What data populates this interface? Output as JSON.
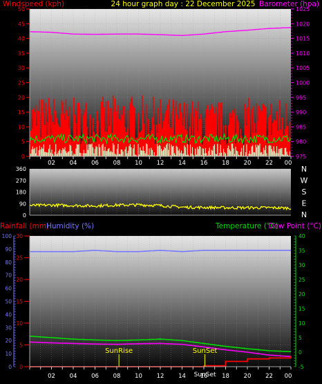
{
  "header": {
    "left": "Windspeed (kph)",
    "center": "24 hour graph day : 22 December 2025",
    "right": "Barometer (hpa)"
  },
  "lower_header": {
    "rainfall": "Rainfall (mm)",
    "humidity": "Humidity (%)",
    "temperature": "Temperature (°C)",
    "dewpoint": "Dew Point (°C)"
  },
  "colors": {
    "windspeed": "#ff0000",
    "wind_avg": "#00dd00",
    "wind_low": "#ccffcc",
    "barometer": "#ff00ff",
    "direction": "#ffff00",
    "rainfall": "#ff0000",
    "humidity": "#7777ff",
    "temperature": "#00dd00",
    "dewpoint": "#ff00ff",
    "text_white": "#ffffff"
  },
  "x_tick_labels": [
    "02",
    "04",
    "06",
    "08",
    "10",
    "12",
    "14",
    "16",
    "18",
    "20",
    "22",
    "00"
  ],
  "compass_labels": [
    "N",
    "W",
    "S",
    "E",
    "N"
  ],
  "chart_data": [
    {
      "type": "line",
      "name": "wind-barometer",
      "ylim_left": [
        0,
        50
      ],
      "ylim_right": [
        975,
        1025
      ],
      "yticks_left": [
        0,
        5,
        10,
        15,
        20,
        25,
        30,
        35,
        40,
        45,
        50
      ],
      "yticks_right": [
        975,
        980,
        985,
        990,
        995,
        1000,
        1005,
        1010,
        1015,
        1020,
        1025
      ],
      "x_hours": [
        0,
        2,
        4,
        6,
        8,
        10,
        12,
        14,
        16,
        18,
        20,
        22,
        24
      ],
      "series": [
        {
          "name": "Barometer (hpa)",
          "axis": "right",
          "values": [
            1017.3,
            1017.1,
            1016.5,
            1016.4,
            1016.5,
            1016.5,
            1016.3,
            1016.0,
            1016.5,
            1017.3,
            1017.8,
            1018.4,
            1018.7
          ]
        },
        {
          "name": "Windspeed (kph)",
          "axis": "left",
          "values": [
            12,
            13,
            12,
            12,
            13,
            13,
            12,
            12,
            11,
            11,
            12,
            12,
            12
          ]
        }
      ]
    },
    {
      "type": "scatter",
      "name": "wind-direction",
      "ylim": [
        0,
        360
      ],
      "yticks": [
        0,
        90,
        180,
        270,
        360
      ],
      "x_hours": [
        0,
        2,
        4,
        6,
        8,
        10,
        12,
        14,
        16,
        18,
        20,
        22,
        24
      ],
      "values": [
        75,
        78,
        75,
        72,
        78,
        80,
        75,
        62,
        60,
        58,
        58,
        58,
        55
      ]
    },
    {
      "type": "line",
      "name": "temperature-humidity-rain",
      "ylim_rain": [
        0,
        30
      ],
      "yticks_rain": [
        0,
        5,
        10,
        15,
        20,
        25,
        30
      ],
      "ylim_humidity": [
        0,
        100
      ],
      "yticks_humidity": [
        0,
        10,
        20,
        30,
        40,
        50,
        60,
        70,
        80,
        90,
        100
      ],
      "ylim_temp": [
        -5,
        40
      ],
      "yticks_temp": [
        -5,
        0,
        5,
        10,
        15,
        20,
        25,
        30,
        35,
        40
      ],
      "x_hours": [
        0,
        2,
        4,
        6,
        8,
        10,
        12,
        14,
        16,
        18,
        20,
        22,
        24
      ],
      "series": [
        {
          "name": "Humidity (%)",
          "axis": "humidity",
          "values": [
            88,
            88,
            88,
            89,
            88,
            88,
            89,
            88,
            89,
            89,
            89,
            89,
            89
          ]
        },
        {
          "name": "Temperature (°C)",
          "axis": "temp",
          "values": [
            5.5,
            5.0,
            4.5,
            4.2,
            4.0,
            4.2,
            4.5,
            4.0,
            3.0,
            2.0,
            1.2,
            0.5,
            0.2
          ]
        },
        {
          "name": "Dew Point (°C)",
          "axis": "temp",
          "values": [
            3.5,
            3.2,
            3.0,
            2.8,
            2.7,
            2.9,
            3.0,
            2.7,
            1.8,
            0.8,
            0.0,
            -1.0,
            -1.5
          ]
        },
        {
          "name": "Rainfall (mm)",
          "axis": "rain",
          "values": [
            0,
            0,
            0,
            0,
            0,
            0,
            0,
            0,
            0.2,
            1.2,
            1.8,
            2.0,
            2.5
          ]
        }
      ],
      "annotations": [
        {
          "label": "SunRise",
          "hour": 8.2
        },
        {
          "label": "SunSet",
          "hour": 16.1
        }
      ],
      "footer_label": "SunSet"
    }
  ]
}
